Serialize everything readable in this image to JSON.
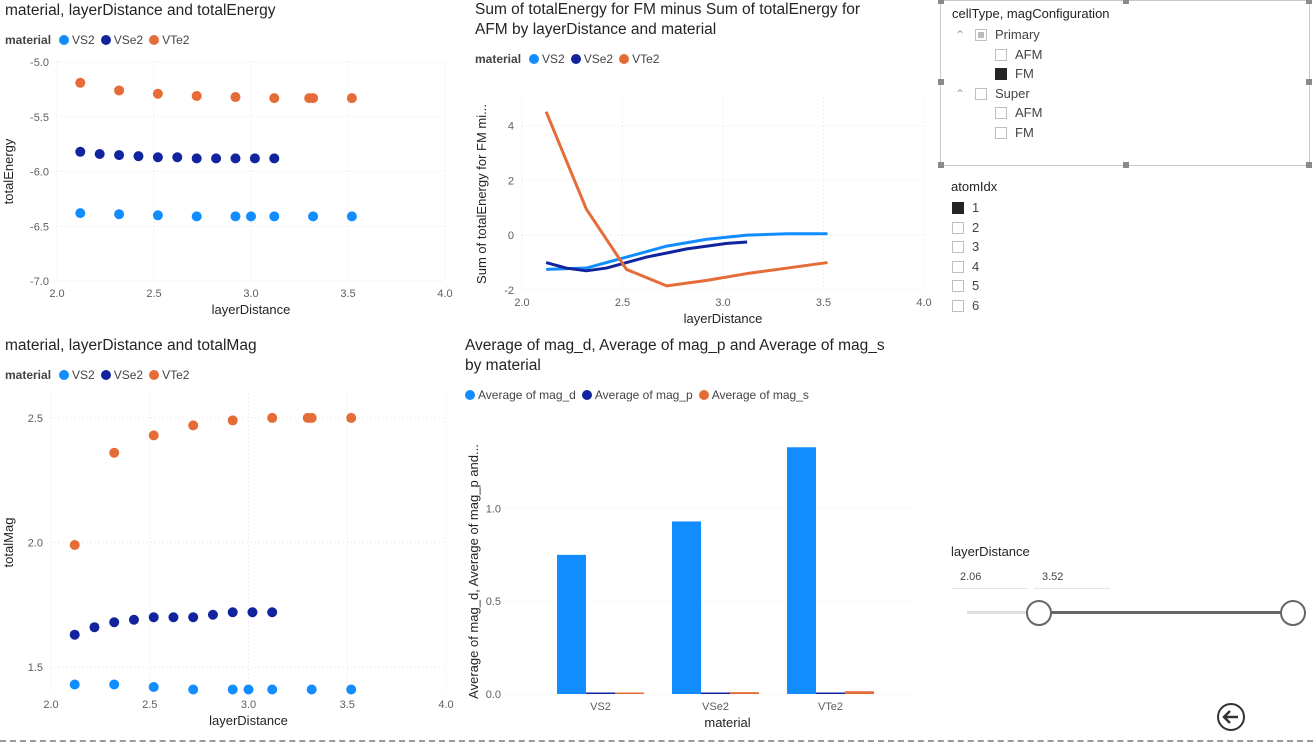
{
  "colors": {
    "VS2": "#118dff",
    "VSe2": "#12239e",
    "VTe2": "#e66c37",
    "mag_d": "#118dff",
    "mag_p": "#12239e",
    "mag_s": "#e66c37"
  },
  "chart1": {
    "title": "material, layerDistance and totalEnergy",
    "legend_title": "material",
    "legend": [
      "VS2",
      "VSe2",
      "VTe2"
    ]
  },
  "chart2": {
    "title": "Sum of totalEnergy for FM minus Sum of totalEnergy for\nAFM by layerDistance and material",
    "legend_title": "material",
    "legend": [
      "VS2",
      "VSe2",
      "VTe2"
    ]
  },
  "chart3": {
    "title": "material, layerDistance and totalMag",
    "legend_title": "material",
    "legend": [
      "VS2",
      "VSe2",
      "VTe2"
    ]
  },
  "chart4": {
    "title": "Average of mag_d, Average of mag_p and Average of mag_s\nby material",
    "legend": [
      "Average of mag_d",
      "Average of mag_p",
      "Average of mag_s"
    ]
  },
  "slicer_cell": {
    "title": "cellType, magConfiguration",
    "groups": [
      {
        "label": "Primary",
        "items": [
          "AFM",
          "FM"
        ]
      },
      {
        "label": "Super",
        "items": [
          "AFM",
          "FM"
        ]
      }
    ]
  },
  "slicer_atom": {
    "title": "atomIdx",
    "items": [
      "1",
      "2",
      "3",
      "4",
      "5",
      "6"
    ]
  },
  "slicer_layer": {
    "title": "layerDistance",
    "min_label": "2.06",
    "max_label": "3.52",
    "selected_min_fraction": 0.22,
    "selected_max_fraction": 1.0
  },
  "chart_data": [
    {
      "type": "scatter",
      "title": "material, layerDistance and totalEnergy",
      "xlabel": "layerDistance",
      "ylabel": "totalEnergy",
      "xlim": [
        2.0,
        4.0
      ],
      "ylim": [
        -7.0,
        -5.0
      ],
      "xticks": [
        "2.0",
        "2.5",
        "3.0",
        "3.5",
        "4.0"
      ],
      "yticks": [
        "-7.0",
        "-6.5",
        "-6.0",
        "-5.5",
        "-5.0"
      ],
      "grid": true,
      "legend_position": "top-left",
      "series": [
        {
          "name": "VS2",
          "x": [
            2.12,
            2.32,
            2.52,
            2.72,
            2.92,
            3.0,
            3.12,
            3.32,
            3.52
          ],
          "y": [
            -6.38,
            -6.39,
            -6.4,
            -6.41,
            -6.41,
            -6.41,
            -6.41,
            -6.41,
            -6.41
          ]
        },
        {
          "name": "VSe2",
          "x": [
            2.12,
            2.22,
            2.32,
            2.42,
            2.52,
            2.62,
            2.72,
            2.82,
            2.92,
            3.02,
            3.12
          ],
          "y": [
            -5.82,
            -5.84,
            -5.85,
            -5.86,
            -5.87,
            -5.87,
            -5.88,
            -5.88,
            -5.88,
            -5.88,
            -5.88
          ]
        },
        {
          "name": "VTe2",
          "x": [
            2.12,
            2.32,
            2.52,
            2.72,
            2.92,
            3.12,
            3.3,
            3.32,
            3.52
          ],
          "y": [
            -5.19,
            -5.26,
            -5.29,
            -5.31,
            -5.32,
            -5.33,
            -5.33,
            -5.33,
            -5.33
          ]
        }
      ]
    },
    {
      "type": "line",
      "title": "Sum of totalEnergy for FM minus Sum of totalEnergy for AFM by layerDistance and material",
      "xlabel": "layerDistance",
      "ylabel": "Sum of totalEnergy for FM mi...",
      "xlim": [
        2.0,
        4.0
      ],
      "ylim": [
        -2,
        5
      ],
      "xticks": [
        "2.0",
        "2.5",
        "3.0",
        "3.5",
        "4.0"
      ],
      "yticks": [
        "-2",
        "0",
        "2",
        "4"
      ],
      "grid": true,
      "legend_position": "top-left",
      "series": [
        {
          "name": "VS2",
          "x": [
            2.12,
            2.32,
            2.52,
            2.72,
            2.92,
            3.12,
            3.32,
            3.52
          ],
          "y": [
            -1.25,
            -1.2,
            -0.8,
            -0.4,
            -0.15,
            0.0,
            0.05,
            0.05
          ]
        },
        {
          "name": "VSe2",
          "x": [
            2.12,
            2.22,
            2.32,
            2.42,
            2.52,
            2.62,
            2.72,
            2.82,
            2.92,
            3.02,
            3.12
          ],
          "y": [
            -1.0,
            -1.2,
            -1.3,
            -1.2,
            -1.0,
            -0.8,
            -0.65,
            -0.5,
            -0.4,
            -0.3,
            -0.25
          ]
        },
        {
          "name": "VTe2",
          "x": [
            2.12,
            2.32,
            2.52,
            2.72,
            2.92,
            3.12,
            3.32,
            3.52
          ],
          "y": [
            4.5,
            0.95,
            -1.25,
            -1.85,
            -1.65,
            -1.4,
            -1.2,
            -1.0
          ]
        }
      ]
    },
    {
      "type": "scatter",
      "title": "material, layerDistance and totalMag",
      "xlabel": "layerDistance",
      "ylabel": "totalMag",
      "xlim": [
        2.0,
        4.0
      ],
      "ylim": [
        1.4,
        2.6
      ],
      "xticks": [
        "2.0",
        "2.5",
        "3.0",
        "3.5",
        "4.0"
      ],
      "yticks": [
        "1.5",
        "2.0",
        "2.5"
      ],
      "grid": true,
      "legend_position": "top-left",
      "series": [
        {
          "name": "VS2",
          "x": [
            2.12,
            2.32,
            2.52,
            2.72,
            2.92,
            3.0,
            3.12,
            3.32,
            3.52
          ],
          "y": [
            1.43,
            1.43,
            1.42,
            1.41,
            1.41,
            1.41,
            1.41,
            1.41,
            1.41
          ]
        },
        {
          "name": "VSe2",
          "x": [
            2.12,
            2.22,
            2.32,
            2.42,
            2.52,
            2.62,
            2.72,
            2.82,
            2.92,
            3.02,
            3.12
          ],
          "y": [
            1.63,
            1.66,
            1.68,
            1.69,
            1.7,
            1.7,
            1.7,
            1.71,
            1.72,
            1.72,
            1.72
          ]
        },
        {
          "name": "VTe2",
          "x": [
            2.12,
            2.32,
            2.52,
            2.72,
            2.92,
            3.12,
            3.3,
            3.32,
            3.52
          ],
          "y": [
            1.99,
            2.36,
            2.43,
            2.47,
            2.49,
            2.5,
            2.5,
            2.5,
            2.5
          ]
        }
      ]
    },
    {
      "type": "bar",
      "title": "Average of mag_d, Average of mag_p and Average of mag_s by material",
      "xlabel": "material",
      "ylabel": "Average of mag_d, Average of mag_p and...",
      "categories": [
        "VS2",
        "VSe2",
        "VTe2"
      ],
      "ylim": [
        0,
        1.45
      ],
      "yticks": [
        "0.0",
        "0.5",
        "1.0"
      ],
      "grid": true,
      "legend_position": "top-left",
      "series": [
        {
          "name": "Average of mag_d",
          "values": [
            0.75,
            0.93,
            1.33
          ]
        },
        {
          "name": "Average of mag_p",
          "values": [
            0.005,
            0.005,
            0.005
          ]
        },
        {
          "name": "Average of mag_s",
          "values": [
            0.008,
            0.01,
            0.015
          ]
        }
      ]
    }
  ]
}
